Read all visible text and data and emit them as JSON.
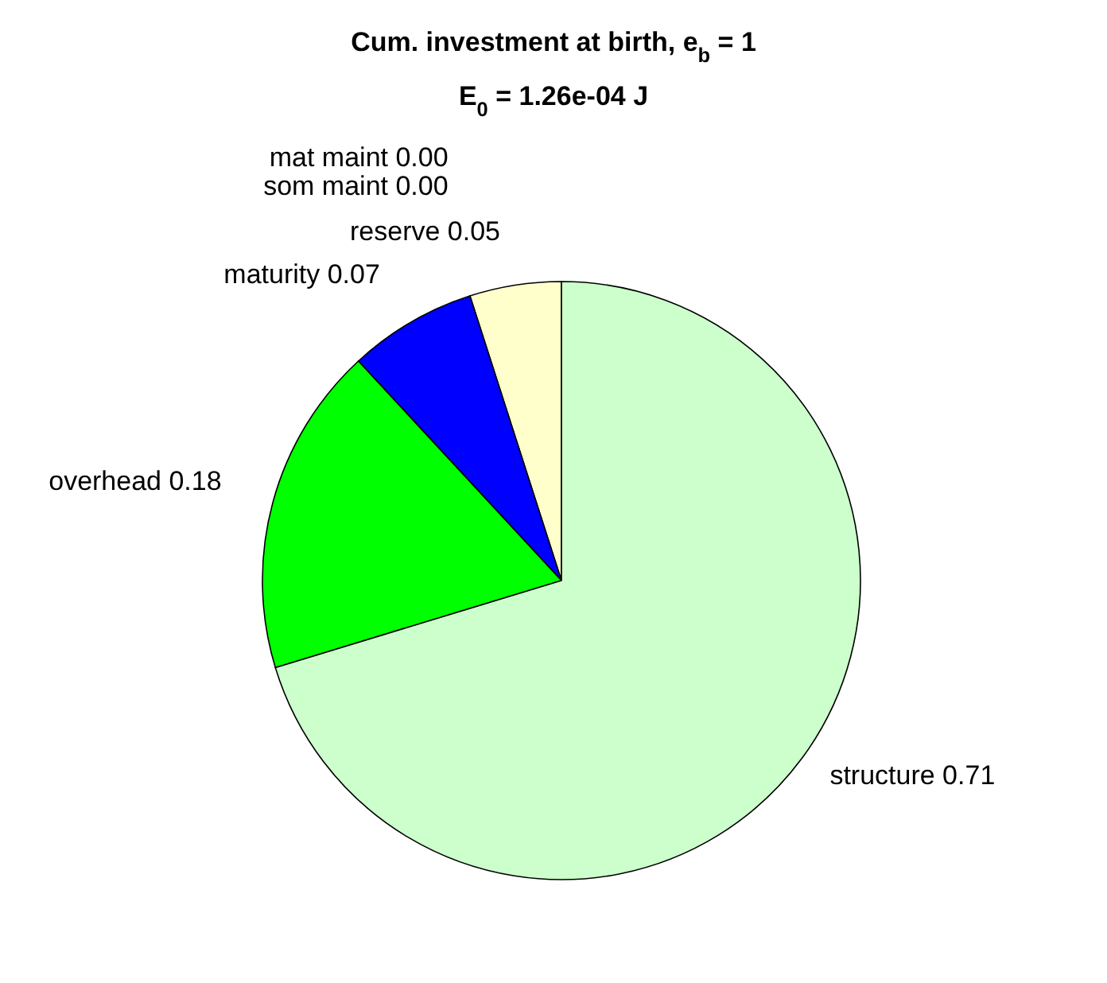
{
  "chart_data": {
    "type": "pie",
    "title": "Cum. investment at birth, e$_{b}$ = 1",
    "subtitle": "E$_{0}$ = 1.26e-04 J",
    "categories": [
      "reserve",
      "som maint",
      "mat maint",
      "maturity",
      "overhead",
      "structure"
    ],
    "values": [
      0.05,
      0.0,
      0.0,
      0.07,
      0.18,
      0.71
    ],
    "value_labels": [
      "0.05",
      "0.00",
      "0.00",
      "0.07",
      "0.18",
      "0.71"
    ],
    "colors": [
      "#ffffcc",
      "#ff8080",
      "#ff0000",
      "#0000ff",
      "#00ff00",
      "#ccffcc"
    ],
    "legend": false
  }
}
